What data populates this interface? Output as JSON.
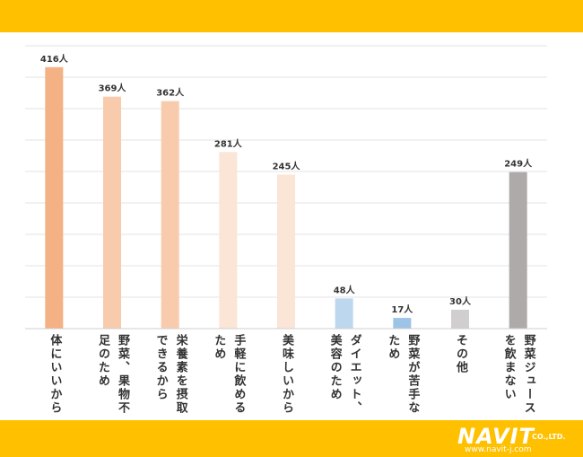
{
  "colors": {
    "banner": "#FFC000",
    "grid": "#e3e3e3",
    "text": "#333333"
  },
  "chart_data": {
    "type": "bar",
    "title": "",
    "xlabel": "",
    "ylabel": "",
    "grid": true,
    "ylim": [
      0,
      450
    ],
    "categories": [
      "体にいいから",
      "野菜、果物不足のため",
      "栄養素を摂取できるから",
      "手軽に飲めるため",
      "美味しいから",
      "ダイエット、美容のため",
      "野菜が苦手なため",
      "その他",
      "野菜ジュースを飲まない"
    ],
    "values": [
      416,
      369,
      362,
      281,
      245,
      48,
      17,
      30,
      249
    ],
    "value_labels": [
      "416人",
      "369人",
      "362人",
      "281人",
      "245人",
      "48人",
      "17人",
      "30人",
      "249人"
    ],
    "bar_colors": [
      "#F4B183",
      "#F8CBAD",
      "#F8CBAD",
      "#FBE5D6",
      "#FBE5D6",
      "#BDD7EE",
      "#9DC3E6",
      "#D0CECE",
      "#AEAAAA"
    ],
    "label_lines": [
      [
        "体にいいから"
      ],
      [
        "野菜、果物不",
        "足のため"
      ],
      [
        "栄養素を摂取",
        "できるから"
      ],
      [
        "手軽に飲める",
        "ため"
      ],
      [
        "美味しいから"
      ],
      [
        "ダイエット、",
        "美容のため"
      ],
      [
        "野菜が苦手な",
        "ため"
      ],
      [
        "その他"
      ],
      [
        "野菜ジュース",
        "を飲まない"
      ]
    ]
  },
  "logo": {
    "name": "NAVIT",
    "suffix": "CO.,LTD.",
    "url": "www.navit-j.com"
  }
}
